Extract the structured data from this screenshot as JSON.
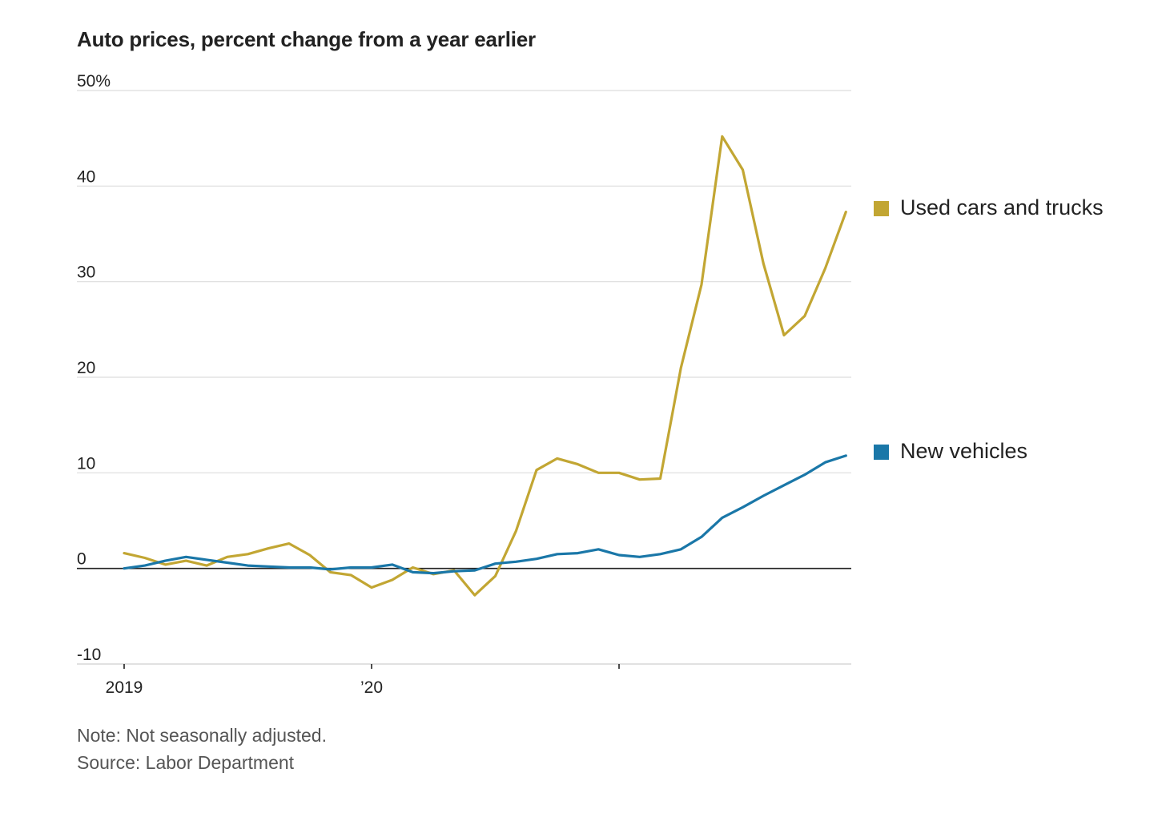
{
  "chart_data": {
    "type": "line",
    "title": "Auto prices, percent change from a year earlier",
    "xlabel": "",
    "ylabel": "",
    "ylim": [
      -10,
      50
    ],
    "y_ticks": [
      {
        "value": 50,
        "label": "50%"
      },
      {
        "value": 40,
        "label": "40"
      },
      {
        "value": 30,
        "label": "30"
      },
      {
        "value": 20,
        "label": "20"
      },
      {
        "value": 10,
        "label": "10"
      },
      {
        "value": 0,
        "label": "0"
      },
      {
        "value": -10,
        "label": "-10"
      }
    ],
    "x_ticks": [
      {
        "month_index": 0,
        "label": "2019"
      },
      {
        "month_index": 12,
        "label": "’20"
      },
      {
        "month_index": 24,
        "label": ""
      }
    ],
    "x_months": [
      "2019-01",
      "2019-02",
      "2019-03",
      "2019-04",
      "2019-05",
      "2019-06",
      "2019-07",
      "2019-08",
      "2019-09",
      "2019-10",
      "2019-11",
      "2019-12",
      "2020-01",
      "2020-02",
      "2020-03",
      "2020-04",
      "2020-05",
      "2020-06",
      "2020-07",
      "2020-08",
      "2020-09",
      "2020-10",
      "2020-11",
      "2020-12",
      "2021-01",
      "2021-02",
      "2021-03",
      "2021-04",
      "2021-05",
      "2021-06",
      "2021-07",
      "2021-08",
      "2021-09",
      "2021-10",
      "2021-11",
      "2021-12"
    ],
    "series": [
      {
        "name": "Used cars and trucks",
        "color": "#c2a633",
        "values": [
          1.6,
          1.1,
          0.4,
          0.8,
          0.3,
          1.2,
          1.5,
          2.1,
          2.6,
          1.4,
          -0.4,
          -0.7,
          -2.0,
          -1.2,
          0.1,
          -0.6,
          -0.2,
          -2.8,
          -0.8,
          3.9,
          10.3,
          11.5,
          10.9,
          10.0,
          10.0,
          9.3,
          9.4,
          21.0,
          29.7,
          45.2,
          41.7,
          31.9,
          24.4,
          26.4,
          31.4,
          37.3
        ]
      },
      {
        "name": "New vehicles",
        "color": "#1a77a8",
        "values": [
          0.0,
          0.3,
          0.8,
          1.2,
          0.9,
          0.6,
          0.3,
          0.2,
          0.1,
          0.1,
          -0.1,
          0.1,
          0.1,
          0.4,
          -0.4,
          -0.5,
          -0.3,
          -0.2,
          0.5,
          0.7,
          1.0,
          1.5,
          1.6,
          2.0,
          1.4,
          1.2,
          1.5,
          2.0,
          3.3,
          5.3,
          6.4,
          7.6,
          8.7,
          9.8,
          11.1,
          11.8
        ]
      }
    ],
    "legend_position": "right, at line ends",
    "grid": true
  },
  "footer": {
    "note": "Note: Not seasonally adjusted.",
    "source": "Source: Labor Department"
  }
}
